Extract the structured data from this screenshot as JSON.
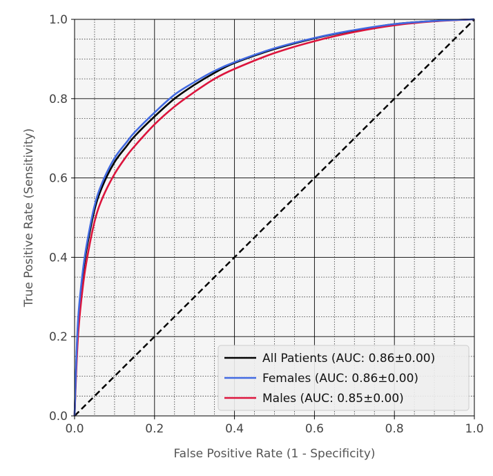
{
  "chart_data": {
    "type": "line",
    "title": "",
    "xlabel": "False Positive Rate (1 - Specificity)",
    "ylabel": "True Positive Rate (Sensitivity)",
    "xlim": [
      0,
      1
    ],
    "ylim": [
      0,
      1
    ],
    "x_ticks": [
      "0.0",
      "0.2",
      "0.4",
      "0.6",
      "0.8",
      "1.0"
    ],
    "y_ticks": [
      "0.0",
      "0.2",
      "0.4",
      "0.6",
      "0.8",
      "1.0"
    ],
    "grid": true,
    "minor_grid": true,
    "legend_position": "lower-right",
    "series": [
      {
        "name": "All Patients (AUC: 0.86±0.00)",
        "color": "#000000",
        "x": [
          0,
          0.005,
          0.01,
          0.02,
          0.03,
          0.05,
          0.07,
          0.1,
          0.13,
          0.15,
          0.2,
          0.25,
          0.3,
          0.35,
          0.4,
          0.5,
          0.6,
          0.7,
          0.8,
          0.9,
          1.0
        ],
        "y": [
          0,
          0.15,
          0.25,
          0.35,
          0.42,
          0.52,
          0.58,
          0.64,
          0.68,
          0.705,
          0.755,
          0.8,
          0.835,
          0.865,
          0.89,
          0.925,
          0.952,
          0.972,
          0.988,
          0.996,
          1.0
        ]
      },
      {
        "name": "Females (AUC: 0.86±0.00)",
        "color": "#4169e1",
        "x": [
          0,
          0.005,
          0.01,
          0.02,
          0.03,
          0.05,
          0.07,
          0.1,
          0.13,
          0.15,
          0.2,
          0.25,
          0.3,
          0.35,
          0.4,
          0.5,
          0.6,
          0.7,
          0.8,
          0.9,
          1.0
        ],
        "y": [
          0,
          0.16,
          0.26,
          0.36,
          0.43,
          0.53,
          0.59,
          0.65,
          0.69,
          0.715,
          0.765,
          0.81,
          0.842,
          0.87,
          0.892,
          0.927,
          0.953,
          0.973,
          0.988,
          0.996,
          1.0
        ]
      },
      {
        "name": "Males (AUC: 0.85±0.00)",
        "color": "#dc143c",
        "x": [
          0,
          0.005,
          0.01,
          0.02,
          0.03,
          0.05,
          0.07,
          0.1,
          0.13,
          0.15,
          0.2,
          0.25,
          0.3,
          0.35,
          0.4,
          0.5,
          0.6,
          0.7,
          0.8,
          0.9,
          1.0
        ],
        "y": [
          0,
          0.13,
          0.22,
          0.32,
          0.39,
          0.49,
          0.55,
          0.61,
          0.655,
          0.68,
          0.735,
          0.78,
          0.817,
          0.85,
          0.875,
          0.915,
          0.945,
          0.968,
          0.985,
          0.995,
          1.0
        ]
      },
      {
        "name": "",
        "color": "#000000",
        "style": "dashed",
        "x": [
          0,
          1
        ],
        "y": [
          0,
          1
        ]
      }
    ]
  }
}
